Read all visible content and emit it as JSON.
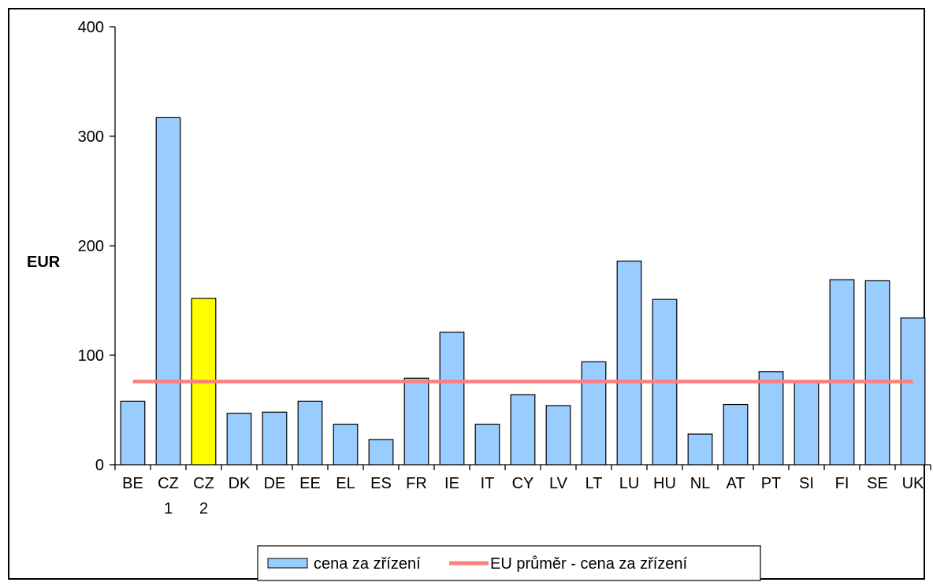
{
  "chart_data": {
    "type": "bar",
    "ylabel": "EUR",
    "ylim": [
      0,
      400
    ],
    "yticks": [
      0,
      100,
      200,
      300,
      400
    ],
    "grid": false,
    "legend_position": "bottom",
    "categories": [
      [
        "BE"
      ],
      [
        "CZ",
        "1"
      ],
      [
        "CZ",
        "2"
      ],
      [
        "DK"
      ],
      [
        "DE"
      ],
      [
        "EE"
      ],
      [
        "EL"
      ],
      [
        "ES"
      ],
      [
        "FR"
      ],
      [
        "IE"
      ],
      [
        "IT"
      ],
      [
        "CY"
      ],
      [
        "LV"
      ],
      [
        "LT"
      ],
      [
        "LU"
      ],
      [
        "HU"
      ],
      [
        "NL"
      ],
      [
        "AT"
      ],
      [
        "PT"
      ],
      [
        "SI"
      ],
      [
        "FI"
      ],
      [
        "SE"
      ],
      [
        "UK"
      ]
    ],
    "series": [
      {
        "name": "cena za zřízení",
        "kind": "bar",
        "color": "#99ccff",
        "highlight_color": "#ffff00",
        "highlight_index": 2,
        "values": [
          58,
          317,
          152,
          47,
          48,
          58,
          37,
          23,
          79,
          121,
          37,
          64,
          54,
          94,
          186,
          151,
          28,
          55,
          85,
          75,
          169,
          168,
          134
        ]
      },
      {
        "name": "EU průměr - cena za zřízení",
        "kind": "line",
        "color": "#ff7f7f",
        "value": 76
      }
    ]
  }
}
